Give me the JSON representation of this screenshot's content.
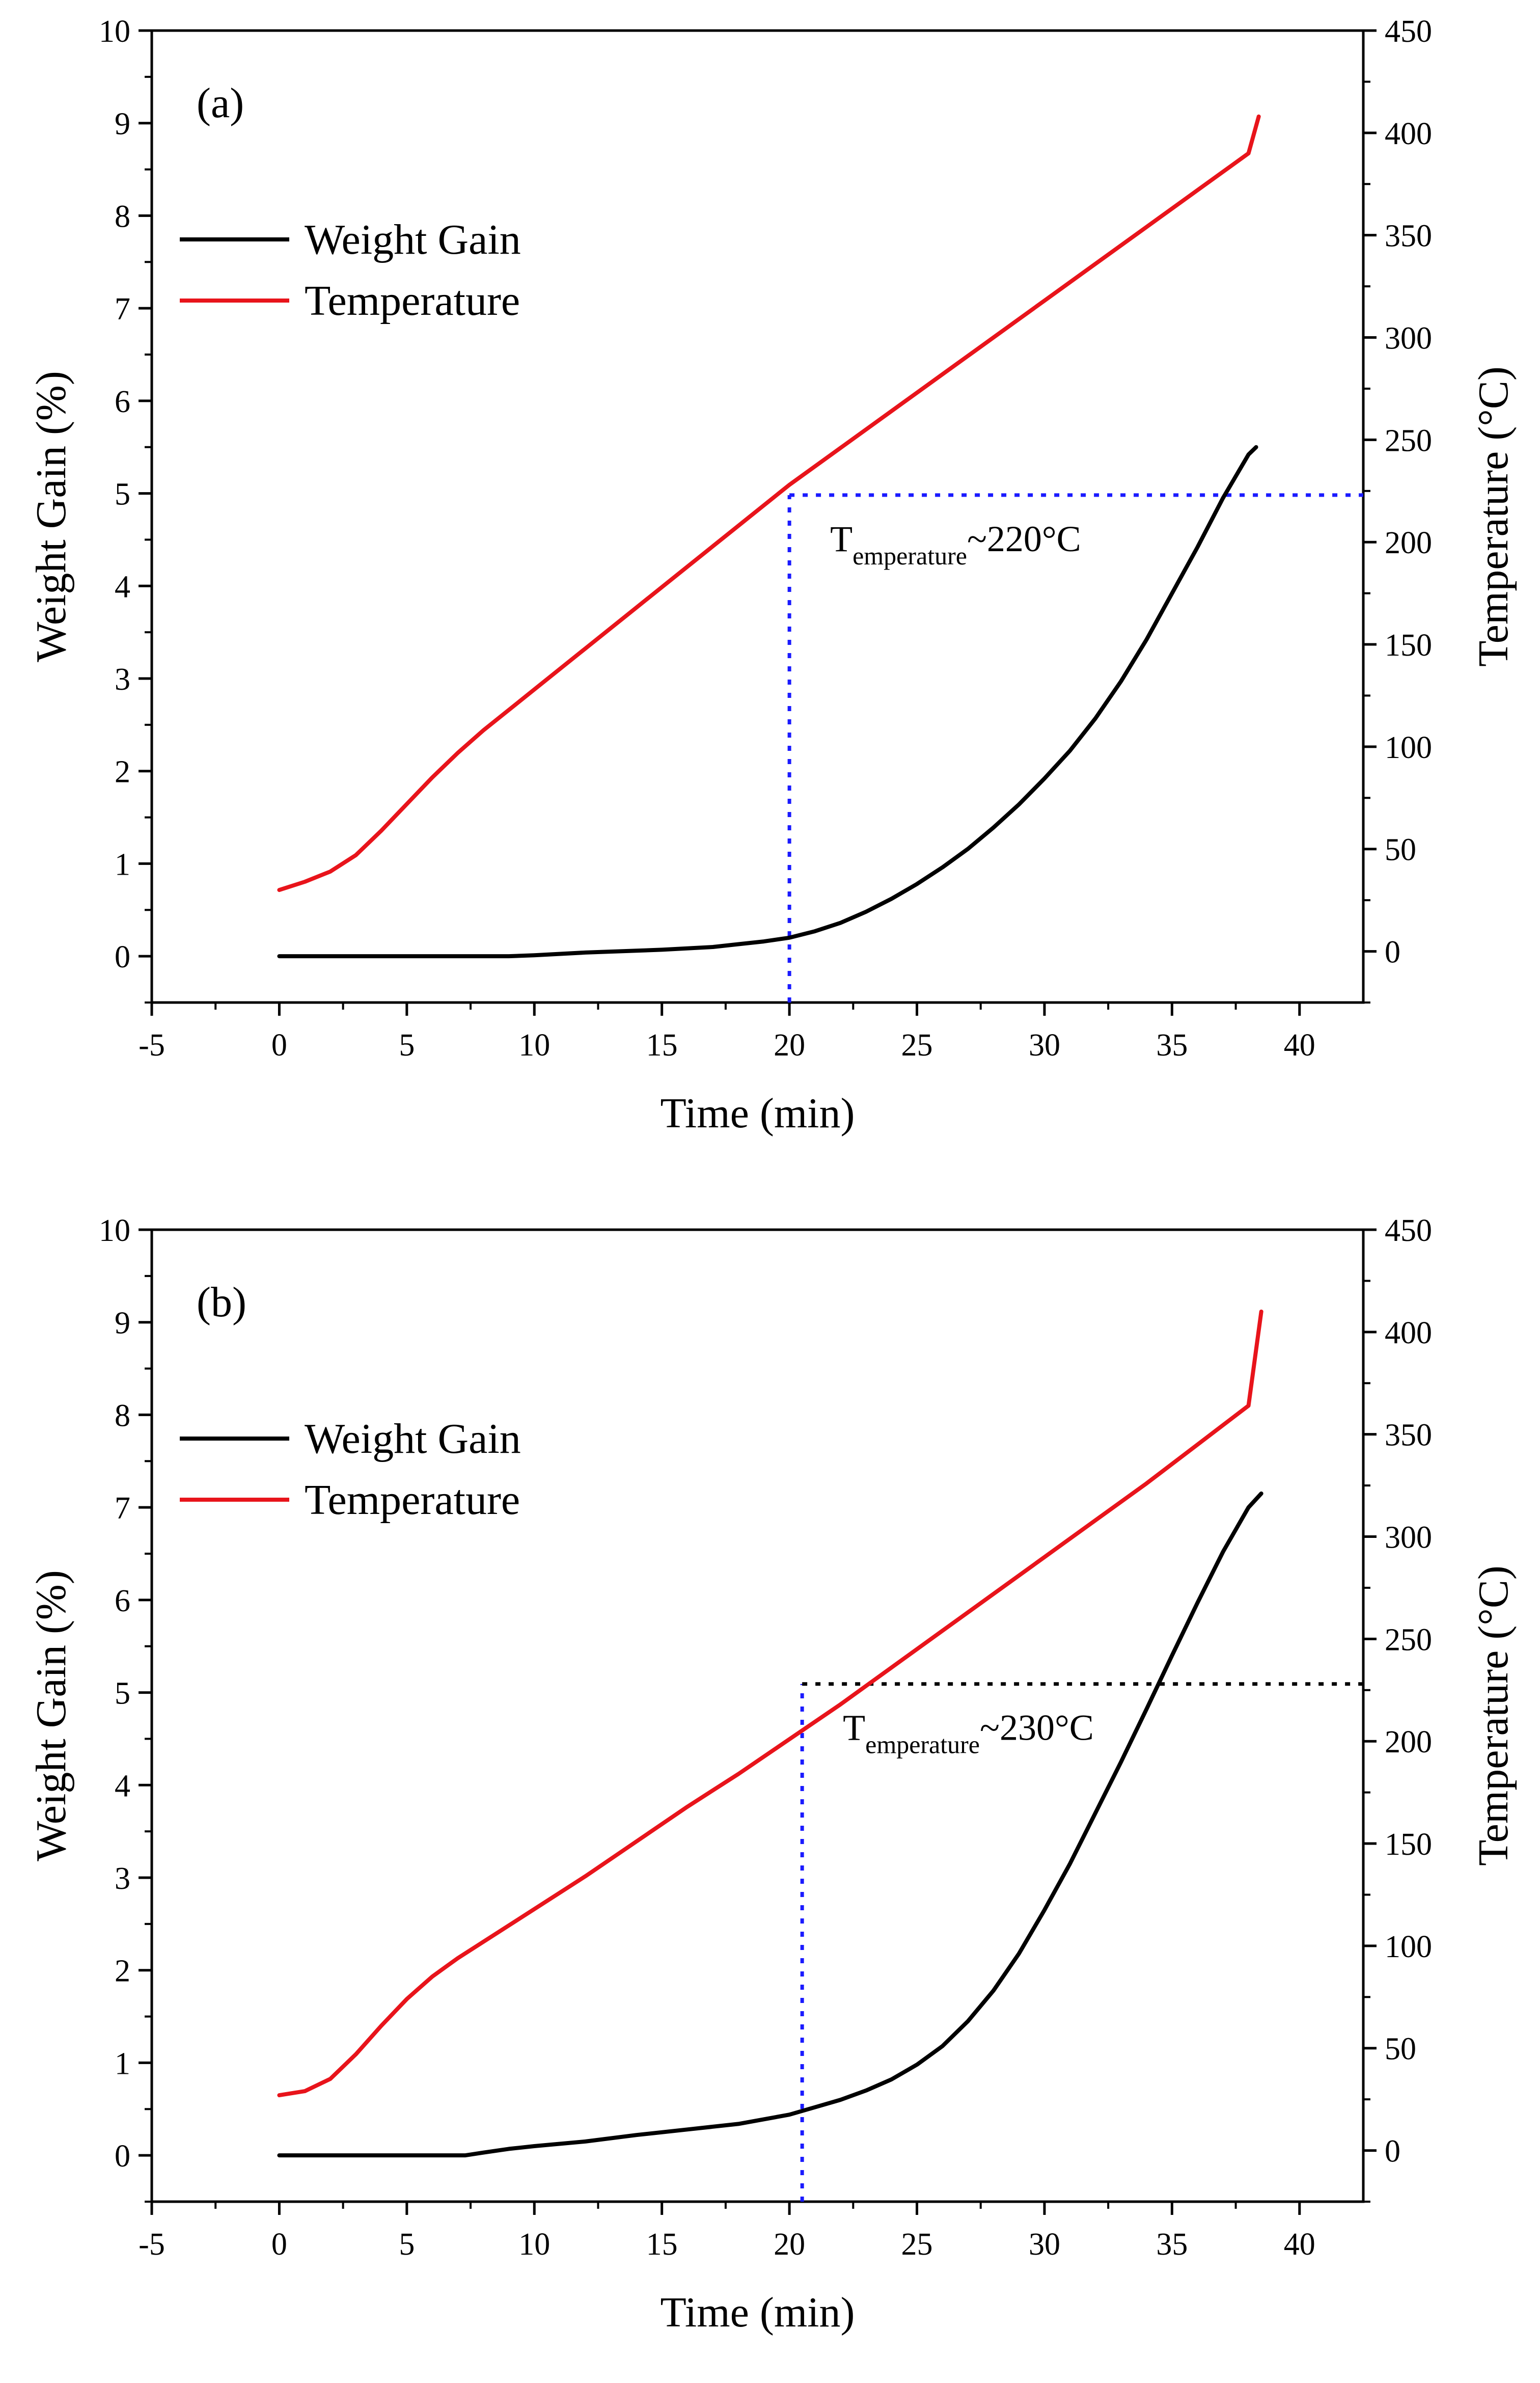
{
  "chart_data": [
    {
      "type": "line",
      "panel_label": "(a)",
      "xlabel": "Time (min)",
      "ylabel": "Weight Gain (%)",
      "y2label": "Temperature (°C)",
      "xlim": [
        -5,
        42.5
      ],
      "ylim": [
        -0.5,
        10
      ],
      "y2lim": [
        -25,
        450
      ],
      "xticks": [
        "-5",
        "0",
        "5",
        "10",
        "15",
        "20",
        "25",
        "30",
        "35",
        "40"
      ],
      "yticks": [
        "0",
        "1",
        "2",
        "3",
        "4",
        "5",
        "6",
        "7",
        "8",
        "9",
        "10"
      ],
      "y2ticks": [
        "0",
        "50",
        "100",
        "150",
        "200",
        "250",
        "300",
        "350",
        "400",
        "450"
      ],
      "legend": {
        "placement": "upper-left",
        "entries": [
          "Weight Gain",
          "Temperature"
        ]
      },
      "series": [
        {
          "name": "Weight Gain",
          "axis": "left",
          "color": "#000000",
          "x": [
            0,
            5,
            9,
            10,
            12,
            15,
            17,
            18,
            19,
            20,
            21,
            22,
            23,
            24,
            25,
            26,
            27,
            28,
            29,
            30,
            31,
            32,
            33,
            34,
            35,
            36,
            37,
            38,
            38.3
          ],
          "y": [
            0,
            0,
            0,
            0.01,
            0.04,
            0.07,
            0.1,
            0.13,
            0.16,
            0.2,
            0.27,
            0.36,
            0.48,
            0.62,
            0.78,
            0.96,
            1.16,
            1.39,
            1.64,
            1.92,
            2.22,
            2.57,
            2.97,
            3.42,
            3.92,
            4.42,
            4.95,
            5.42,
            5.5
          ]
        },
        {
          "name": "Temperature",
          "axis": "right",
          "color": "#e8141b",
          "x": [
            0,
            1,
            2,
            3,
            4,
            5,
            6,
            7,
            8,
            10,
            12,
            14,
            16,
            18,
            20,
            22,
            24,
            26,
            28,
            30,
            32,
            34,
            36,
            38,
            38.4
          ],
          "y": [
            30,
            34,
            39,
            47,
            59,
            72,
            85,
            97,
            108,
            128,
            148,
            168,
            188,
            208,
            228,
            246,
            264,
            282,
            300,
            318,
            336,
            354,
            372,
            390,
            408
          ]
        }
      ],
      "reference": {
        "x": 20,
        "temperature": 223,
        "label_main": "T",
        "label_sub": "emperature",
        "label_value": "~220°C",
        "color": "#1a1aff"
      }
    },
    {
      "type": "line",
      "panel_label": "(b)",
      "xlabel": "Time (min)",
      "ylabel": "Weight Gain (%)",
      "y2label": "Temperature (°C)",
      "xlim": [
        -5,
        42.5
      ],
      "ylim": [
        -0.5,
        10
      ],
      "y2lim": [
        -25,
        450
      ],
      "xticks": [
        "-5",
        "0",
        "5",
        "10",
        "15",
        "20",
        "25",
        "30",
        "35",
        "40"
      ],
      "yticks": [
        "0",
        "1",
        "2",
        "3",
        "4",
        "5",
        "6",
        "7",
        "8",
        "9",
        "10"
      ],
      "y2ticks": [
        "0",
        "50",
        "100",
        "150",
        "200",
        "250",
        "300",
        "350",
        "400",
        "450"
      ],
      "legend": {
        "placement": "upper-left",
        "entries": [
          "Weight Gain",
          "Temperature"
        ]
      },
      "series": [
        {
          "name": "Weight Gain",
          "axis": "left",
          "color": "#000000",
          "x": [
            0,
            3,
            7.3,
            8,
            9,
            10,
            12,
            14,
            16,
            18,
            20,
            21,
            22,
            23,
            24,
            25,
            26,
            27,
            28,
            29,
            30,
            31,
            32,
            33,
            34,
            35,
            36,
            37,
            38,
            38.5
          ],
          "y": [
            0,
            0,
            0,
            0.03,
            0.07,
            0.1,
            0.15,
            0.22,
            0.28,
            0.34,
            0.44,
            0.52,
            0.6,
            0.7,
            0.82,
            0.98,
            1.18,
            1.45,
            1.78,
            2.18,
            2.65,
            3.15,
            3.7,
            4.25,
            4.82,
            5.4,
            5.97,
            6.52,
            7.0,
            7.15
          ]
        },
        {
          "name": "Temperature",
          "axis": "right",
          "color": "#e8141b",
          "x": [
            0,
            1,
            2,
            3,
            4,
            5,
            6,
            7,
            8,
            10,
            12,
            14,
            16,
            18,
            20,
            22,
            24,
            26,
            28,
            30,
            32,
            34,
            36,
            38,
            38.5
          ],
          "y": [
            27,
            29,
            35,
            47,
            61,
            74,
            85,
            94,
            102,
            118,
            134,
            151,
            168,
            184,
            201,
            218,
            236,
            254,
            272,
            290,
            308,
            326,
            345,
            364,
            410
          ]
        }
      ],
      "reference": {
        "x": 20.5,
        "temperature": 228,
        "label_main": "T",
        "label_sub": "emperature",
        "label_value": "~230°C",
        "color": "#1a1aff",
        "horizontal_color": "#000000"
      }
    }
  ]
}
